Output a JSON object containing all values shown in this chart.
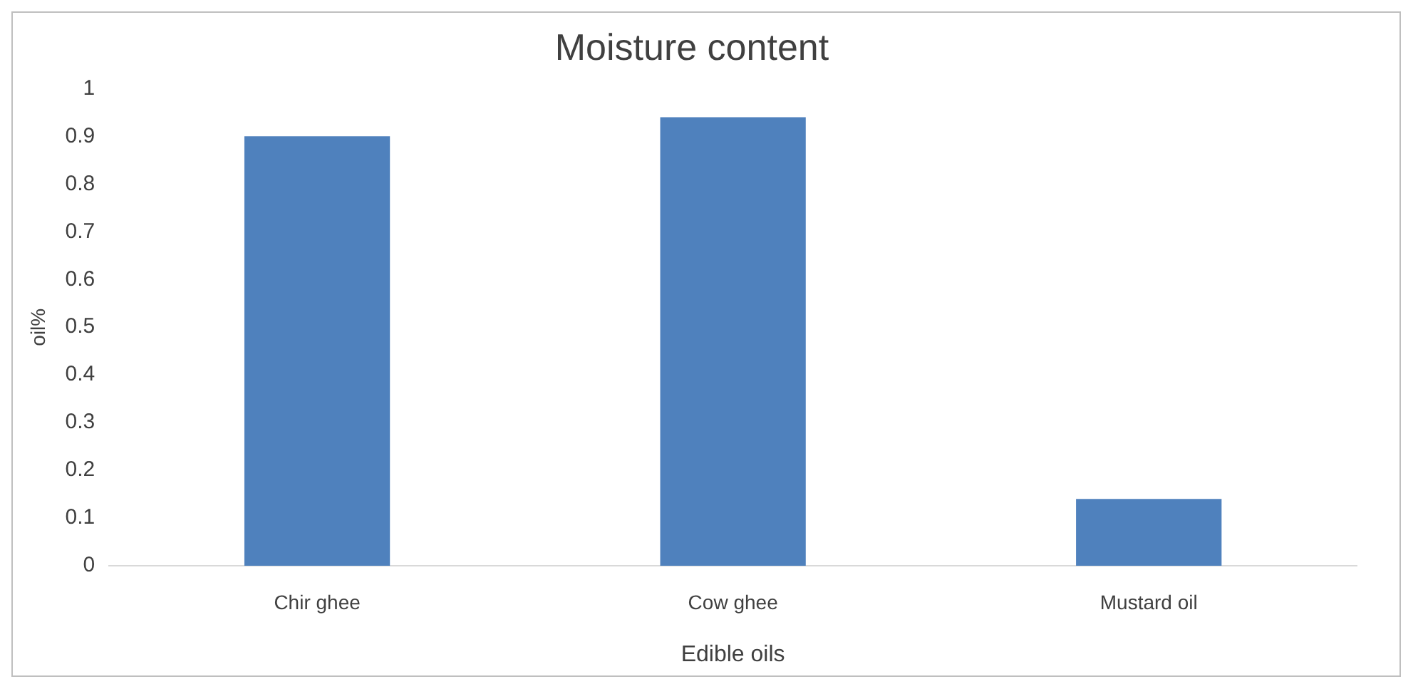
{
  "chart_data": {
    "type": "bar",
    "title": "Moisture content",
    "xlabel": "Edible oils",
    "ylabel": "oil%",
    "categories": [
      "Chir ghee",
      "Cow ghee",
      "Mustard oil"
    ],
    "values": [
      0.9,
      0.94,
      0.14
    ],
    "color": "#4f81bd",
    "ylim": [
      0,
      1
    ],
    "yticks": [
      0,
      0.1,
      0.2,
      0.3,
      0.4,
      0.5,
      0.6,
      0.7,
      0.8,
      0.9,
      1
    ],
    "grid": false,
    "legend": false
  }
}
